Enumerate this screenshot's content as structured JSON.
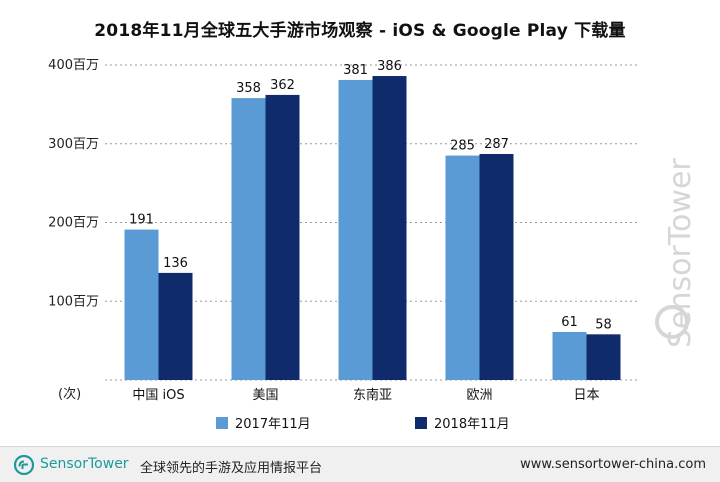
{
  "chart_data": {
    "type": "bar",
    "title": "2018年11月全球五大手游市场观察 - iOS & Google Play 下载量",
    "categories": [
      "中国 iOS",
      "美国",
      "东南亚",
      "欧洲",
      "日本"
    ],
    "series": [
      {
        "name": "2017年11月",
        "values": [
          191,
          358,
          381,
          285,
          61
        ],
        "color": "#5b9bd5"
      },
      {
        "name": "2018年11月",
        "values": [
          136,
          362,
          386,
          287,
          58
        ],
        "color": "#0f2b6b"
      }
    ],
    "y_ticks": [
      {
        "value": 100,
        "label": "100百万"
      },
      {
        "value": 200,
        "label": "200百万"
      },
      {
        "value": 300,
        "label": "300百万"
      },
      {
        "value": 400,
        "label": "400百万"
      }
    ],
    "y_unit_label": "(次)",
    "ylim": [
      0,
      400
    ],
    "grid": "horizontal dashed",
    "legend_position": "bottom"
  },
  "watermark": "SensorTower",
  "footer": {
    "brand_bold": "Sensor",
    "brand_light": "Tower",
    "slogan": "全球领先的手游及应用情报平台",
    "url": "www.sensortower-china.com",
    "brand_color": "#1c9a9a"
  }
}
